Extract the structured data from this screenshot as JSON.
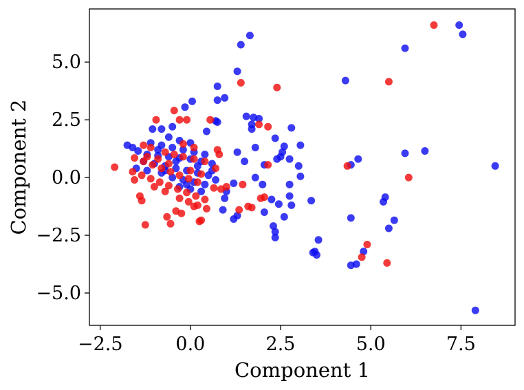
{
  "chart_data": {
    "type": "scatter",
    "title": "",
    "xlabel": "Component 1",
    "ylabel": "Component 2",
    "xlim": [
      -2.8,
      9.0
    ],
    "ylim": [
      -6.4,
      7.3
    ],
    "grid": false,
    "xticks": [
      -2.5,
      0.0,
      2.5,
      5.0,
      7.5
    ],
    "xtick_labels": [
      "−2.5",
      "0.0",
      "2.5",
      "5.0",
      "7.5"
    ],
    "yticks": [
      -5.0,
      -2.5,
      0.0,
      2.5,
      5.0
    ],
    "ytick_labels": [
      "−5.0",
      "−2.5",
      "0.0",
      "2.5",
      "5.0"
    ],
    "series": [
      {
        "color": "#1010f0",
        "points": [
          [
            7.45,
            6.6
          ],
          [
            7.55,
            6.2
          ],
          [
            1.65,
            6.15
          ],
          [
            1.4,
            5.75
          ],
          [
            5.95,
            5.6
          ],
          [
            1.3,
            4.6
          ],
          [
            4.3,
            4.2
          ],
          [
            0.75,
            3.95
          ],
          [
            0.95,
            3.45
          ],
          [
            0.75,
            3.35
          ],
          [
            0.05,
            3.3
          ],
          [
            -0.15,
            3.05
          ],
          [
            1.55,
            2.65
          ],
          [
            1.75,
            2.6
          ],
          [
            1.9,
            2.55
          ],
          [
            0.7,
            2.45
          ],
          [
            0.75,
            2.4
          ],
          [
            1.7,
            2.3
          ],
          [
            1.7,
            2.1
          ],
          [
            2.8,
            2.15
          ],
          [
            -0.5,
            2.2
          ],
          [
            -0.8,
            2.1
          ],
          [
            0.45,
            2.0
          ],
          [
            -1.05,
            2.1
          ],
          [
            2.35,
            1.7
          ],
          [
            3.05,
            1.4
          ],
          [
            1.8,
            1.3
          ],
          [
            1.3,
            1.1
          ],
          [
            2.6,
            1.35
          ],
          [
            2.55,
            1.1
          ],
          [
            5.95,
            1.05
          ],
          [
            6.5,
            1.15
          ],
          [
            2.5,
            0.9
          ],
          [
            2.4,
            0.8
          ],
          [
            1.5,
            0.7
          ],
          [
            2.75,
            0.8
          ],
          [
            4.65,
            0.8
          ],
          [
            2.05,
            0.55
          ],
          [
            3.0,
            0.5
          ],
          [
            4.45,
            0.55
          ],
          [
            8.45,
            0.5
          ],
          [
            3.05,
            0.05
          ],
          [
            1.8,
            0.0
          ],
          [
            2.0,
            -0.3
          ],
          [
            1.2,
            -0.25
          ],
          [
            2.75,
            -0.3
          ],
          [
            1.0,
            -0.6
          ],
          [
            0.95,
            -0.9
          ],
          [
            2.75,
            -0.8
          ],
          [
            2.25,
            -0.95
          ],
          [
            2.8,
            -1.2
          ],
          [
            3.35,
            -1.0
          ],
          [
            2.45,
            -1.15
          ],
          [
            5.4,
            -0.85
          ],
          [
            5.35,
            -1.05
          ],
          [
            2.05,
            -1.5
          ],
          [
            2.6,
            -1.7
          ],
          [
            4.45,
            -1.75
          ],
          [
            5.65,
            -1.85
          ],
          [
            1.3,
            -1.65
          ],
          [
            1.2,
            -1.8
          ],
          [
            0.9,
            -1.4
          ],
          [
            -1.75,
            1.4
          ],
          [
            -1.6,
            1.3
          ],
          [
            -1.45,
            1.15
          ],
          [
            -1.2,
            1.0
          ],
          [
            -0.9,
            0.95
          ],
          [
            -0.6,
            0.9
          ],
          [
            -0.3,
            0.85
          ],
          [
            0.0,
            0.8
          ],
          [
            0.3,
            0.7
          ],
          [
            0.6,
            0.6
          ],
          [
            -1.3,
            0.7
          ],
          [
            -1.0,
            0.6
          ],
          [
            -0.7,
            0.5
          ],
          [
            -0.4,
            0.4
          ],
          [
            -0.1,
            0.3
          ],
          [
            0.2,
            0.2
          ],
          [
            0.5,
            0.1
          ],
          [
            -0.8,
            0.2
          ],
          [
            -0.5,
            0.0
          ],
          [
            -0.2,
            -0.1
          ],
          [
            0.1,
            -0.2
          ],
          [
            0.4,
            -0.3
          ],
          [
            -0.3,
            -0.4
          ],
          [
            0.0,
            -0.5
          ],
          [
            0.3,
            -0.6
          ],
          [
            -1.1,
            1.5
          ],
          [
            -0.8,
            1.4
          ],
          [
            -0.5,
            1.3
          ],
          [
            -0.2,
            1.2
          ],
          [
            0.1,
            1.1
          ],
          [
            0.4,
            1.0
          ],
          [
            -0.6,
            1.75
          ],
          [
            -0.3,
            1.6
          ],
          [
            0.0,
            1.5
          ],
          [
            -0.9,
            1.2
          ],
          [
            -0.4,
            0.7
          ],
          [
            0.2,
            0.5
          ],
          [
            -0.7,
            0.3
          ],
          [
            -0.1,
            -0.3
          ],
          [
            0.6,
            0.3
          ],
          [
            -1.5,
            0.4
          ],
          [
            -1.2,
            0.3
          ],
          [
            0.7,
            -0.1
          ],
          [
            2.3,
            -2.1
          ],
          [
            2.35,
            -2.35
          ],
          [
            2.35,
            -2.6
          ],
          [
            3.55,
            -2.7
          ],
          [
            3.4,
            -3.25
          ],
          [
            3.5,
            -3.35
          ],
          [
            3.45,
            -3.2
          ],
          [
            4.8,
            -3.2
          ],
          [
            4.6,
            -3.75
          ],
          [
            4.45,
            -3.8
          ],
          [
            5.5,
            -2.2
          ],
          [
            7.9,
            -5.75
          ]
        ]
      },
      {
        "color": "#f01010",
        "points": [
          [
            6.75,
            6.6
          ],
          [
            1.4,
            4.1
          ],
          [
            5.5,
            4.15
          ],
          [
            2.4,
            3.9
          ],
          [
            -0.45,
            2.9
          ],
          [
            -0.3,
            2.5
          ],
          [
            -0.1,
            2.5
          ],
          [
            0.55,
            2.5
          ],
          [
            -0.95,
            2.5
          ],
          [
            1.9,
            2.3
          ],
          [
            2.15,
            2.2
          ],
          [
            -2.1,
            0.45
          ],
          [
            -1.3,
            1.4
          ],
          [
            -1.1,
            1.3
          ],
          [
            -0.7,
            1.1
          ],
          [
            -0.45,
            1.0
          ],
          [
            -0.2,
            0.9
          ],
          [
            0.1,
            0.8
          ],
          [
            0.4,
            0.7
          ],
          [
            0.75,
            1.2
          ],
          [
            -1.55,
            0.85
          ],
          [
            -1.3,
            0.7
          ],
          [
            -1.05,
            0.55
          ],
          [
            -0.8,
            0.4
          ],
          [
            -0.55,
            0.25
          ],
          [
            -0.3,
            0.1
          ],
          [
            -0.05,
            -0.05
          ],
          [
            0.2,
            -0.2
          ],
          [
            -1.6,
            0.25
          ],
          [
            -1.35,
            0.1
          ],
          [
            -1.1,
            -0.05
          ],
          [
            -0.85,
            -0.2
          ],
          [
            -0.6,
            -0.35
          ],
          [
            -0.35,
            -0.5
          ],
          [
            -0.1,
            -0.65
          ],
          [
            0.15,
            -0.8
          ],
          [
            0.4,
            -0.95
          ],
          [
            -0.3,
            -0.9
          ],
          [
            -0.05,
            -1.05
          ],
          [
            0.2,
            -1.2
          ],
          [
            0.45,
            -1.35
          ],
          [
            -1.55,
            -0.1
          ],
          [
            -1.4,
            -0.8
          ],
          [
            -1.35,
            -1.0
          ],
          [
            -1.25,
            -2.05
          ],
          [
            -0.65,
            -1.7
          ],
          [
            -0.55,
            -2.0
          ],
          [
            -0.4,
            -1.45
          ],
          [
            -0.25,
            -1.55
          ],
          [
            0.1,
            -1.25
          ],
          [
            0.3,
            -1.85
          ],
          [
            0.25,
            -1.9
          ],
          [
            1.35,
            -1.4
          ],
          [
            1.7,
            -1.3
          ],
          [
            1.6,
            -1.25
          ],
          [
            2.05,
            -0.85
          ],
          [
            1.95,
            -0.9
          ],
          [
            0.65,
            -0.45
          ],
          [
            0.85,
            -0.5
          ],
          [
            1.0,
            -0.4
          ],
          [
            1.45,
            -0.3
          ],
          [
            2.15,
            0.55
          ],
          [
            4.35,
            0.5
          ],
          [
            6.05,
            0.0
          ],
          [
            4.9,
            -2.9
          ],
          [
            4.75,
            -3.45
          ],
          [
            5.45,
            -3.7
          ],
          [
            -0.9,
            0.8
          ],
          [
            -0.6,
            0.6
          ],
          [
            0.0,
            0.3
          ],
          [
            0.3,
            0.15
          ],
          [
            -1.0,
            -0.4
          ],
          [
            -0.7,
            -0.6
          ],
          [
            0.7,
            0.4
          ],
          [
            0.8,
            1.0
          ],
          [
            -0.2,
            1.45
          ],
          [
            0.1,
            1.3
          ],
          [
            -1.2,
            0.9
          ]
        ]
      }
    ]
  }
}
